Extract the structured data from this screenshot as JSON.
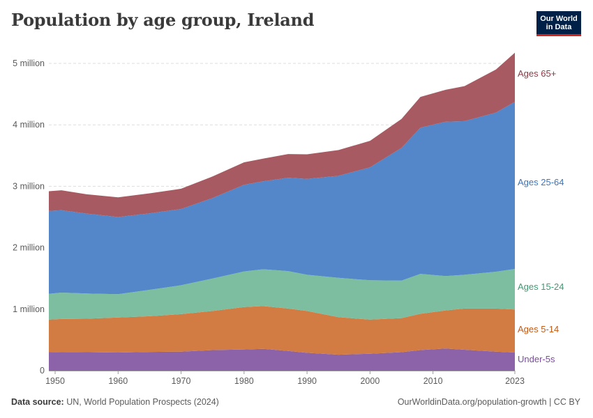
{
  "title": "Population by age group, Ireland",
  "logo": {
    "line1": "Our World",
    "line2": "in Data"
  },
  "footer": {
    "source_label": "Data source:",
    "source_text": "UN, World Population Prospects (2024)",
    "right_text": "OurWorldinData.org/population-growth | CC BY"
  },
  "chart_data": {
    "type": "area",
    "stacked": true,
    "title": "Population by age group, Ireland",
    "xlabel": "",
    "ylabel": "",
    "xlim": [
      1949,
      2023
    ],
    "ylim": [
      0,
      5200000
    ],
    "y_ticks": [
      0,
      1000000,
      2000000,
      3000000,
      4000000,
      5000000
    ],
    "y_tick_labels": [
      "0",
      "1 million",
      "2 million",
      "3 million",
      "4 million",
      "5 million"
    ],
    "x_ticks": [
      1950,
      1960,
      1970,
      1980,
      1990,
      2000,
      2010,
      2023
    ],
    "x_tick_labels": [
      "1950",
      "1960",
      "1970",
      "1980",
      "1990",
      "2000",
      "2010",
      "2023"
    ],
    "grid": "horizontal dashed",
    "legend": "labels at right end",
    "x": [
      1949,
      1951,
      1955,
      1960,
      1965,
      1970,
      1975,
      1980,
      1983,
      1987,
      1990,
      1995,
      2000,
      2005,
      2008,
      2012,
      2015,
      2020,
      2023
    ],
    "series": [
      {
        "name": "Under-5s",
        "color": "#8c63a8",
        "values": [
          300000,
          305000,
          300000,
          295000,
          305000,
          310000,
          335000,
          345000,
          355000,
          320000,
          290000,
          260000,
          275000,
          300000,
          335000,
          360000,
          340000,
          310000,
          295000
        ]
      },
      {
        "name": "Ages 5-14",
        "color": "#d27c44",
        "values": [
          530000,
          535000,
          545000,
          570000,
          580000,
          610000,
          635000,
          690000,
          695000,
          690000,
          680000,
          610000,
          555000,
          555000,
          590000,
          620000,
          670000,
          700000,
          700000
        ]
      },
      {
        "name": "Ages 15-24",
        "color": "#7cbe9f",
        "values": [
          420000,
          430000,
          410000,
          380000,
          430000,
          470000,
          530000,
          580000,
          600000,
          610000,
          590000,
          640000,
          640000,
          610000,
          650000,
          560000,
          550000,
          600000,
          660000
        ]
      },
      {
        "name": "Ages 25-64",
        "color": "#5387c9",
        "values": [
          1350000,
          1340000,
          1300000,
          1255000,
          1245000,
          1240000,
          1310000,
          1410000,
          1430000,
          1520000,
          1560000,
          1660000,
          1840000,
          2160000,
          2380000,
          2510000,
          2500000,
          2590000,
          2720000
        ]
      },
      {
        "name": "Ages 65+",
        "color": "#a85a62",
        "values": [
          320000,
          325000,
          315000,
          320000,
          325000,
          330000,
          350000,
          365000,
          370000,
          385000,
          400000,
          420000,
          430000,
          470000,
          500000,
          520000,
          570000,
          700000,
          800000
        ]
      }
    ]
  }
}
